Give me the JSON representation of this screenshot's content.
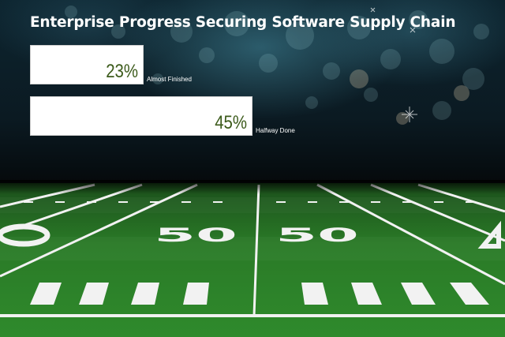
{
  "title": "Enterprise Progress Securing Software Supply Chain",
  "chart_data": {
    "type": "bar",
    "orientation": "horizontal",
    "title": "Enterprise Progress Securing Software Supply Chain",
    "categories": [
      "Almost Finished",
      "Halfway Done"
    ],
    "values": [
      23,
      45
    ],
    "value_labels": [
      "23%",
      "45%"
    ],
    "unit": "%",
    "xlim": [
      0,
      100
    ],
    "grid": false,
    "legend": "none"
  },
  "colors": {
    "bar_fill": "#ffffff",
    "value_text": "#3b5a1a",
    "turf_dark": "#1f6b1f",
    "turf_light": "#2f8a2c",
    "field_lines": "#f2f2f2"
  },
  "field": {
    "yard_numbers": [
      "50",
      "50"
    ]
  }
}
